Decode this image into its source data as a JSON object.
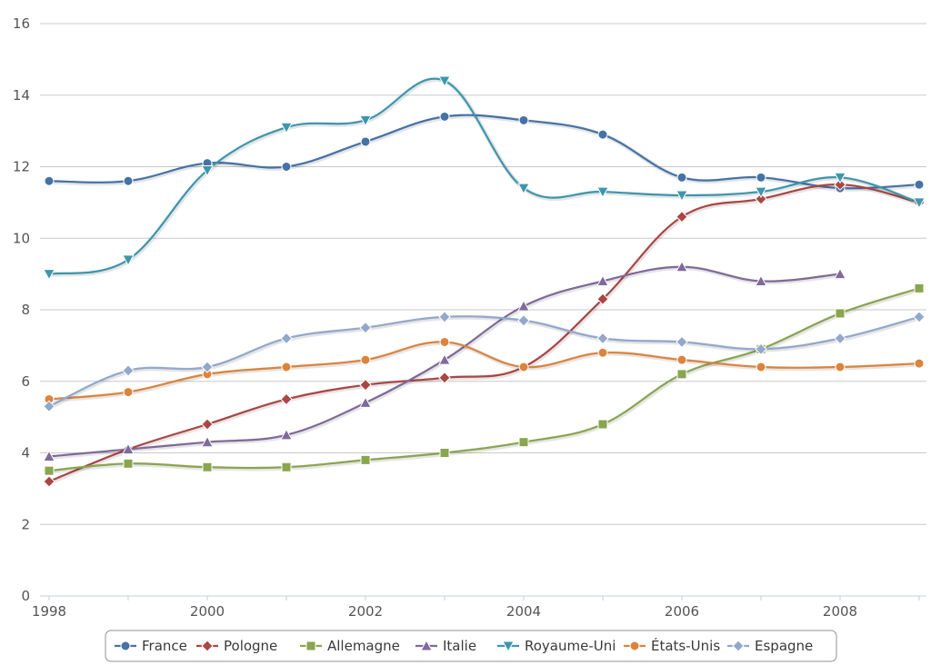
{
  "chart_data": {
    "type": "line",
    "x": [
      1998,
      1999,
      2000,
      2001,
      2002,
      2003,
      2004,
      2005,
      2006,
      2007,
      2008,
      2009
    ],
    "xlim": [
      1998,
      2009
    ],
    "ylim": [
      0,
      16
    ],
    "x_ticks": [
      "1998",
      "2000",
      "2002",
      "2004",
      "2006",
      "2008"
    ],
    "y_ticks": [
      "0",
      "2",
      "4",
      "6",
      "8",
      "10",
      "12",
      "14",
      "16"
    ],
    "grid": "horizontal",
    "legend_position": "bottom-center",
    "series": [
      {
        "name": "France",
        "color": "#4572A7",
        "marker": "circle",
        "values": [
          11.6,
          11.6,
          12.1,
          12.0,
          12.7,
          13.4,
          13.3,
          12.9,
          11.7,
          11.7,
          11.4,
          11.5
        ]
      },
      {
        "name": "Pologne",
        "color": "#AA4643",
        "marker": "diamond",
        "values": [
          3.2,
          4.1,
          4.8,
          5.5,
          5.9,
          6.1,
          6.4,
          8.3,
          10.6,
          11.1,
          11.5,
          11.0
        ]
      },
      {
        "name": "Allemagne",
        "color": "#89A54E",
        "marker": "square",
        "values": [
          3.5,
          3.7,
          3.6,
          3.6,
          3.8,
          4.0,
          4.3,
          4.8,
          6.2,
          6.9,
          7.9,
          8.6
        ]
      },
      {
        "name": "Italie",
        "color": "#80699B",
        "marker": "triangle",
        "values": [
          3.9,
          4.1,
          4.3,
          4.5,
          5.4,
          6.6,
          8.1,
          8.8,
          9.2,
          8.8,
          9.0,
          null
        ]
      },
      {
        "name": "Royaume-Uni",
        "color": "#3D96AE",
        "marker": "triangle-down",
        "values": [
          9.0,
          9.4,
          11.9,
          13.1,
          13.3,
          14.4,
          11.4,
          11.3,
          11.2,
          11.3,
          11.7,
          11.0
        ]
      },
      {
        "name": "États-Unis",
        "color": "#DB843D",
        "marker": "circle",
        "values": [
          5.5,
          5.7,
          6.2,
          6.4,
          6.6,
          7.1,
          6.4,
          6.8,
          6.6,
          6.4,
          6.4,
          6.5
        ]
      },
      {
        "name": "Espagne",
        "color": "#92A8CD",
        "marker": "diamond",
        "values": [
          5.3,
          6.3,
          6.4,
          7.2,
          7.5,
          7.8,
          7.7,
          7.2,
          7.1,
          6.9,
          7.2,
          7.8
        ]
      }
    ]
  }
}
